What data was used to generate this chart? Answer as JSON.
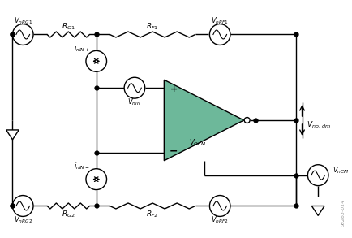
{
  "bg_color": "#ffffff",
  "op_amp_color": "#6db89a",
  "op_amp_edge": "#000000",
  "line_color": "#000000",
  "watermark": "08263-014"
}
